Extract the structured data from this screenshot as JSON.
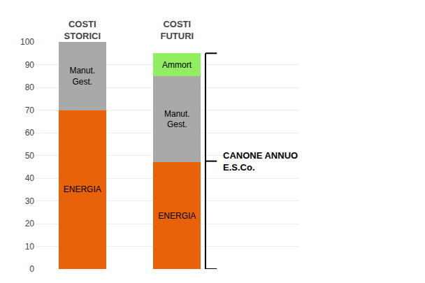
{
  "chart_data": {
    "type": "bar",
    "stacked": true,
    "categories": [
      "COSTI\nSTORICI",
      "COSTI\nFUTURI"
    ],
    "series": [
      {
        "name": "ENERGIA",
        "color": "#E8620A",
        "values": [
          70,
          47
        ]
      },
      {
        "name": "Manut.\nGest.",
        "color": "#A9A9A9",
        "values": [
          30,
          38
        ]
      },
      {
        "name": "Ammort",
        "color": "#90EE60",
        "values": [
          0,
          10
        ]
      }
    ],
    "ylim": [
      0,
      100
    ],
    "yticks": [
      0,
      10,
      20,
      30,
      40,
      50,
      60,
      70,
      80,
      90,
      100
    ],
    "grid": true,
    "annotations": [
      {
        "text": "CANONE ANNUO\nE.S.Co.",
        "category": "COSTI\nFUTURI",
        "bracket": [
          0,
          95
        ]
      }
    ]
  }
}
